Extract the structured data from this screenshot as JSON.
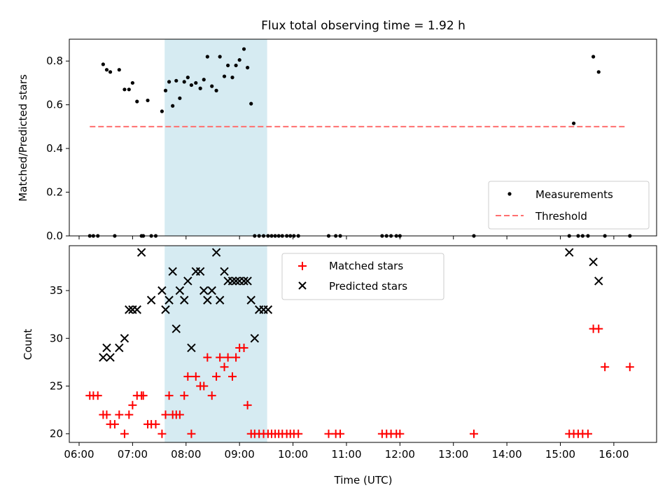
{
  "colors": {
    "measurement": "#000000",
    "threshold": "#ff6f6f",
    "matched": "#ff0000",
    "predicted": "#000000",
    "highlight_band": "#add8e6"
  },
  "chart_data": [
    {
      "type": "scatter",
      "title": "Flux total observing time = 1.92 h",
      "ylabel": "Matched/Predicted stars",
      "xlabel": "",
      "x_unit": "time (UTC)",
      "xlim": [
        "05:49",
        "16:48"
      ],
      "ylim": [
        0,
        0.9
      ],
      "yticks": [
        0.0,
        0.2,
        0.4,
        0.6,
        0.8
      ],
      "ytick_labels": [
        "0.0",
        "0.2",
        "0.4",
        "0.6",
        "0.8"
      ],
      "xticks": [
        "06:00",
        "07:00",
        "08:00",
        "09:00",
        "10:00",
        "11:00",
        "12:00",
        "13:00",
        "14:00",
        "15:00",
        "16:00"
      ],
      "xtick_labels": [],
      "highlight_span": [
        "07:36",
        "09:31"
      ],
      "legend": {
        "position": "lower right",
        "entries": [
          "Measurements",
          "Threshold"
        ]
      },
      "threshold": {
        "name": "Threshold",
        "y": 0.5,
        "x_range": [
          "06:12",
          "16:15"
        ]
      },
      "series": [
        {
          "name": "Measurements",
          "marker": "point",
          "x": [
            "06:12",
            "06:16",
            "06:21",
            "06:27",
            "06:31",
            "06:35",
            "06:40",
            "06:45",
            "06:51",
            "06:56",
            "07:00",
            "07:05",
            "07:10",
            "07:12",
            "07:17",
            "07:21",
            "07:26",
            "07:33",
            "07:37",
            "07:41",
            "07:45",
            "07:49",
            "07:53",
            "07:58",
            "08:02",
            "08:06",
            "08:11",
            "08:16",
            "08:20",
            "08:24",
            "08:29",
            "08:34",
            "08:38",
            "08:43",
            "08:47",
            "08:52",
            "08:56",
            "09:00",
            "09:05",
            "09:09",
            "09:13",
            "09:17",
            "09:22",
            "09:27",
            "09:32",
            "09:36",
            "09:40",
            "09:44",
            "09:48",
            "09:53",
            "09:57",
            "10:01",
            "10:06",
            "10:40",
            "10:48",
            "10:53",
            "11:40",
            "11:45",
            "11:50",
            "11:56",
            "12:00",
            "13:23",
            "15:10",
            "15:15",
            "15:20",
            "15:25",
            "15:31",
            "15:37",
            "15:43",
            "15:50",
            "16:18"
          ],
          "y": [
            0.0,
            0.0,
            0.0,
            0.785,
            0.76,
            0.75,
            0.0,
            0.76,
            0.67,
            0.67,
            0.7,
            0.615,
            0.0,
            0.0,
            0.62,
            0.0,
            0.0,
            0.57,
            0.665,
            0.705,
            0.595,
            0.71,
            0.63,
            0.705,
            0.725,
            0.69,
            0.7,
            0.675,
            0.715,
            0.82,
            0.685,
            0.665,
            0.82,
            0.73,
            0.78,
            0.725,
            0.78,
            0.805,
            0.855,
            0.77,
            0.605,
            0.0,
            0.0,
            0.0,
            0.0,
            0.0,
            0.0,
            0.0,
            0.0,
            0.0,
            0.0,
            0.0,
            0.0,
            0.0,
            0.0,
            0.0,
            0.0,
            0.0,
            0.0,
            0.0,
            0.0,
            0.0,
            0.0,
            0.515,
            0.0,
            0.0,
            0.0,
            0.82,
            0.75,
            0.0,
            0.0
          ]
        }
      ]
    },
    {
      "type": "scatter",
      "title": "",
      "ylabel": "Count",
      "xlabel": "Time (UTC)",
      "x_unit": "time (UTC)",
      "xlim": [
        "05:49",
        "16:48"
      ],
      "ylim": [
        19.1,
        39.7
      ],
      "yticks": [
        20,
        25,
        30,
        35
      ],
      "ytick_labels": [
        "20",
        "25",
        "30",
        "35"
      ],
      "xticks": [
        "06:00",
        "07:00",
        "08:00",
        "09:00",
        "10:00",
        "11:00",
        "12:00",
        "13:00",
        "14:00",
        "15:00",
        "16:00"
      ],
      "xtick_labels": [
        "06:00",
        "07:00",
        "08:00",
        "09:00",
        "10:00",
        "11:00",
        "12:00",
        "13:00",
        "14:00",
        "15:00",
        "16:00"
      ],
      "highlight_span": [
        "07:36",
        "09:31"
      ],
      "legend": {
        "position": "upper center",
        "entries": [
          "Matched stars",
          "Predicted stars"
        ]
      },
      "series": [
        {
          "name": "Matched stars",
          "marker": "plus",
          "x": [
            "06:12",
            "06:16",
            "06:21",
            "06:27",
            "06:31",
            "06:35",
            "06:40",
            "06:45",
            "06:51",
            "06:56",
            "07:00",
            "07:05",
            "07:10",
            "07:12",
            "07:17",
            "07:21",
            "07:26",
            "07:33",
            "07:37",
            "07:41",
            "07:45",
            "07:49",
            "07:53",
            "07:58",
            "08:02",
            "08:06",
            "08:11",
            "08:16",
            "08:20",
            "08:24",
            "08:29",
            "08:34",
            "08:38",
            "08:43",
            "08:47",
            "08:52",
            "08:56",
            "09:00",
            "09:05",
            "09:09",
            "09:13",
            "09:17",
            "09:22",
            "09:27",
            "09:32",
            "09:36",
            "09:40",
            "09:44",
            "09:48",
            "09:53",
            "09:57",
            "10:01",
            "10:06",
            "10:40",
            "10:48",
            "10:53",
            "11:40",
            "11:45",
            "11:50",
            "11:56",
            "12:00",
            "13:23",
            "15:10",
            "15:15",
            "15:20",
            "15:25",
            "15:31",
            "15:37",
            "15:43",
            "15:50",
            "16:18"
          ],
          "y": [
            24,
            24,
            24,
            22,
            22,
            21,
            21,
            22,
            20,
            22,
            23,
            24,
            24,
            24,
            21,
            21,
            21,
            20,
            22,
            24,
            22,
            22,
            22,
            24,
            26,
            20,
            26,
            25,
            25,
            28,
            24,
            26,
            28,
            27,
            28,
            26,
            28,
            29,
            29,
            23,
            20,
            20,
            20,
            20,
            20,
            20,
            20,
            20,
            20,
            20,
            20,
            20,
            20,
            20,
            20,
            20,
            20,
            20,
            20,
            20,
            20,
            20,
            20,
            20,
            20,
            20,
            20,
            31,
            31,
            27,
            27
          ]
        },
        {
          "name": "Predicted stars",
          "marker": "x",
          "x": [
            "06:27",
            "06:31",
            "06:35",
            "06:45",
            "06:51",
            "06:56",
            "07:00",
            "07:05",
            "07:10",
            "07:21",
            "07:33",
            "07:37",
            "07:41",
            "07:45",
            "07:49",
            "07:53",
            "07:58",
            "08:02",
            "08:06",
            "08:11",
            "08:16",
            "08:20",
            "08:24",
            "08:29",
            "08:34",
            "08:38",
            "08:43",
            "08:47",
            "08:52",
            "08:56",
            "09:00",
            "09:05",
            "09:09",
            "09:13",
            "09:17",
            "09:22",
            "09:27",
            "09:32",
            "15:10",
            "15:37",
            "15:43"
          ],
          "y": [
            28,
            29,
            28,
            29,
            30,
            33,
            33,
            33,
            39,
            34,
            35,
            33,
            34,
            37,
            31,
            35,
            34,
            36,
            29,
            37,
            37,
            35,
            34,
            35,
            39,
            34,
            37,
            36,
            36,
            36,
            36,
            36,
            36,
            34,
            30,
            33,
            33,
            33,
            39,
            38,
            36
          ]
        }
      ]
    }
  ]
}
